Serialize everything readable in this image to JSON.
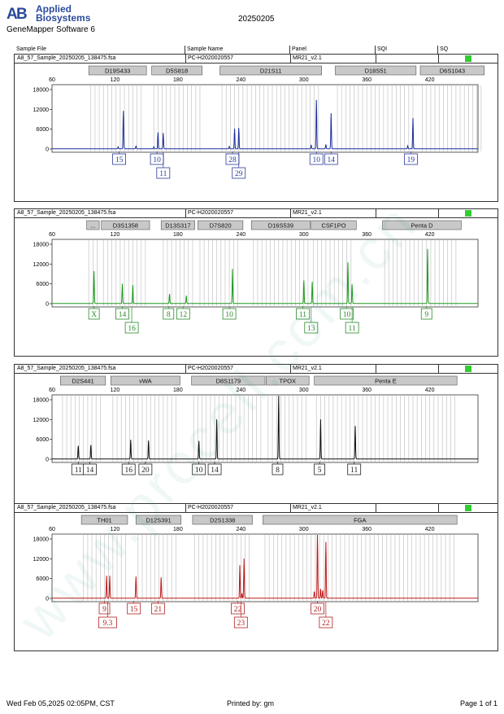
{
  "header": {
    "brand_line1": "Applied",
    "brand_line2": "Biosystems",
    "software": "GeneMapper Software 6",
    "date_title": "20250205"
  },
  "columns": {
    "sample_file": "Sample File",
    "sample_name": "Sample Name",
    "panel": "Panel",
    "sqi": "SQI",
    "sq": "SQ"
  },
  "panels": [
    {
      "sample_file": "A8_57_Sample_20250205_138475.fsa",
      "sample_name": "PC-H2020020557",
      "panel_name": "MR21_v2.1",
      "color": "#1c2e9e",
      "label_color": "#2a3a9a",
      "ymax": 18000,
      "yticks": [
        "18000",
        "12000",
        "6000",
        "0"
      ],
      "markers": [
        {
          "name": "D19S433",
          "from": 95,
          "to": 150
        },
        {
          "name": "D5S818",
          "from": 155,
          "to": 203
        },
        {
          "name": "D21S11",
          "from": 220,
          "to": 317
        },
        {
          "name": "D18S51",
          "from": 330,
          "to": 407
        },
        {
          "name": "D6S1043",
          "from": 411,
          "to": 472
        }
      ],
      "peaks": [
        {
          "bp": 128,
          "h": 11500
        },
        {
          "bp": 123,
          "h": 600
        },
        {
          "bp": 140,
          "h": 800
        },
        {
          "bp": 161,
          "h": 5000
        },
        {
          "bp": 166,
          "h": 4800
        },
        {
          "bp": 157,
          "h": 600
        },
        {
          "bp": 234,
          "h": 6100
        },
        {
          "bp": 238,
          "h": 6300
        },
        {
          "bp": 229,
          "h": 700
        },
        {
          "bp": 312,
          "h": 14800
        },
        {
          "bp": 307,
          "h": 1200
        },
        {
          "bp": 326,
          "h": 10800
        },
        {
          "bp": 321,
          "h": 1300
        },
        {
          "bp": 404,
          "h": 9300
        },
        {
          "bp": 399,
          "h": 900
        }
      ],
      "labels": [
        {
          "bp": 124,
          "row": 0,
          "text": "15"
        },
        {
          "bp": 160,
          "row": 0,
          "text": "10"
        },
        {
          "bp": 166,
          "row": 1,
          "text": "11"
        },
        {
          "bp": 232,
          "row": 0,
          "text": "28"
        },
        {
          "bp": 238,
          "row": 1,
          "text": "29"
        },
        {
          "bp": 312,
          "row": 0,
          "text": "10"
        },
        {
          "bp": 326,
          "row": 0,
          "text": "14"
        },
        {
          "bp": 402,
          "row": 0,
          "text": "19"
        }
      ]
    },
    {
      "sample_file": "A8_57_Sample_20250205_138475.fsa",
      "sample_name": "PC-H2020020557",
      "panel_name": "MR21_v2.1",
      "color": "#1e9a1e",
      "label_color": "#2a8a2a",
      "ymax": 18000,
      "yticks": [
        "18000",
        "12000",
        "6000",
        "0"
      ],
      "markers": [
        {
          "name": "...",
          "from": 93,
          "to": 105
        },
        {
          "name": "D3S1358",
          "from": 107,
          "to": 153
        },
        {
          "name": "D13S317",
          "from": 164,
          "to": 196
        },
        {
          "name": "D7S820",
          "from": 199,
          "to": 242
        },
        {
          "name": "D16S539",
          "from": 250,
          "to": 306
        },
        {
          "name": "CSF1PO",
          "from": 307,
          "to": 350
        },
        {
          "name": "Penta D",
          "from": 375,
          "to": 450
        }
      ],
      "peaks": [
        {
          "bp": 100,
          "h": 9800
        },
        {
          "bp": 127,
          "h": 6000
        },
        {
          "bp": 137,
          "h": 5600
        },
        {
          "bp": 172,
          "h": 2900
        },
        {
          "bp": 188,
          "h": 2400
        },
        {
          "bp": 232,
          "h": 10500
        },
        {
          "bp": 300,
          "h": 7000
        },
        {
          "bp": 308,
          "h": 6600
        },
        {
          "bp": 342,
          "h": 12500
        },
        {
          "bp": 346,
          "h": 5800
        },
        {
          "bp": 418,
          "h": 16500
        }
      ],
      "labels": [
        {
          "bp": 100,
          "row": 0,
          "text": "X"
        },
        {
          "bp": 127,
          "row": 0,
          "text": "14"
        },
        {
          "bp": 136,
          "row": 1,
          "text": "16"
        },
        {
          "bp": 171,
          "row": 0,
          "text": "8"
        },
        {
          "bp": 185,
          "row": 0,
          "text": "12"
        },
        {
          "bp": 229,
          "row": 0,
          "text": "10"
        },
        {
          "bp": 299,
          "row": 0,
          "text": "11"
        },
        {
          "bp": 307,
          "row": 1,
          "text": "13"
        },
        {
          "bp": 341,
          "row": 0,
          "text": "10"
        },
        {
          "bp": 346,
          "row": 1,
          "text": "11"
        },
        {
          "bp": 417,
          "row": 0,
          "text": "9"
        }
      ]
    },
    {
      "sample_file": "A8_57_Sample_20250205_138475.fsa",
      "sample_name": "PC-H2020020557",
      "panel_name": "MR21_v2.1",
      "color": "#111111",
      "label_color": "#222222",
      "ymax": 18000,
      "yticks": [
        "18000",
        "12000",
        "6000",
        "0"
      ],
      "markers": [
        {
          "name": "D2S441",
          "from": 68,
          "to": 111
        },
        {
          "name": "vWA",
          "from": 116,
          "to": 182
        },
        {
          "name": "D8S1179",
          "from": 193,
          "to": 263
        },
        {
          "name": "TPOX",
          "from": 264,
          "to": 305
        },
        {
          "name": "Penta E",
          "from": 310,
          "to": 446
        }
      ],
      "peaks": [
        {
          "bp": 85,
          "h": 4000
        },
        {
          "bp": 97,
          "h": 4200
        },
        {
          "bp": 135,
          "h": 5800
        },
        {
          "bp": 152,
          "h": 5600
        },
        {
          "bp": 200,
          "h": 5500
        },
        {
          "bp": 217,
          "h": 12000
        },
        {
          "bp": 276,
          "h": 19500
        },
        {
          "bp": 316,
          "h": 12000
        },
        {
          "bp": 349,
          "h": 10000
        }
      ],
      "labels": [
        {
          "bp": 85,
          "row": 0,
          "text": "11"
        },
        {
          "bp": 96,
          "row": 0,
          "text": "14"
        },
        {
          "bp": 133,
          "row": 0,
          "text": "16"
        },
        {
          "bp": 149,
          "row": 0,
          "text": "20"
        },
        {
          "bp": 200,
          "row": 0,
          "text": "10"
        },
        {
          "bp": 215,
          "row": 0,
          "text": "14"
        },
        {
          "bp": 275,
          "row": 0,
          "text": "8"
        },
        {
          "bp": 315,
          "row": 0,
          "text": "5"
        },
        {
          "bp": 348,
          "row": 0,
          "text": "11"
        }
      ]
    },
    {
      "sample_file": "A8_57_Sample_20250205_138475.fsa",
      "sample_name": "PC-H2020020557",
      "panel_name": "MR21_v2.1",
      "color": "#c01818",
      "label_color": "#b02020",
      "ymax": 18000,
      "yticks": [
        "18000",
        "12000",
        "6000",
        "0"
      ],
      "markers": [
        {
          "name": "TH01",
          "from": 88,
          "to": 132
        },
        {
          "name": "D12S391",
          "from": 140,
          "to": 183
        },
        {
          "name": "D2S1338",
          "from": 194,
          "to": 251
        },
        {
          "name": "FGA",
          "from": 261,
          "to": 446
        }
      ],
      "peaks": [
        {
          "bp": 112,
          "h": 6800
        },
        {
          "bp": 115,
          "h": 6800
        },
        {
          "bp": 140,
          "h": 6600
        },
        {
          "bp": 164,
          "h": 6300
        },
        {
          "bp": 239,
          "h": 10000
        },
        {
          "bp": 243,
          "h": 12000
        },
        {
          "bp": 241,
          "h": 1500
        },
        {
          "bp": 313,
          "h": 19500
        },
        {
          "bp": 316,
          "h": 2800
        },
        {
          "bp": 318,
          "h": 2400
        },
        {
          "bp": 321,
          "h": 17000
        },
        {
          "bp": 310,
          "h": 2000
        }
      ],
      "labels": [
        {
          "bp": 110,
          "row": 0,
          "text": "9"
        },
        {
          "bp": 113,
          "row": 1,
          "text": "9.3"
        },
        {
          "bp": 138,
          "row": 0,
          "text": "15"
        },
        {
          "bp": 161,
          "row": 0,
          "text": "21"
        },
        {
          "bp": 237,
          "row": 0,
          "text": "22"
        },
        {
          "bp": 240,
          "row": 1,
          "text": "23"
        },
        {
          "bp": 313,
          "row": 0,
          "text": "20"
        },
        {
          "bp": 321,
          "row": 1,
          "text": "22"
        }
      ]
    }
  ],
  "xticks": [
    60,
    120,
    180,
    240,
    300,
    360,
    420
  ],
  "footer": {
    "timestamp": "Wed Feb 05,2025 02:05PM, CST",
    "printed_by": "Printed by: gm",
    "page": "Page 1 of 1"
  }
}
